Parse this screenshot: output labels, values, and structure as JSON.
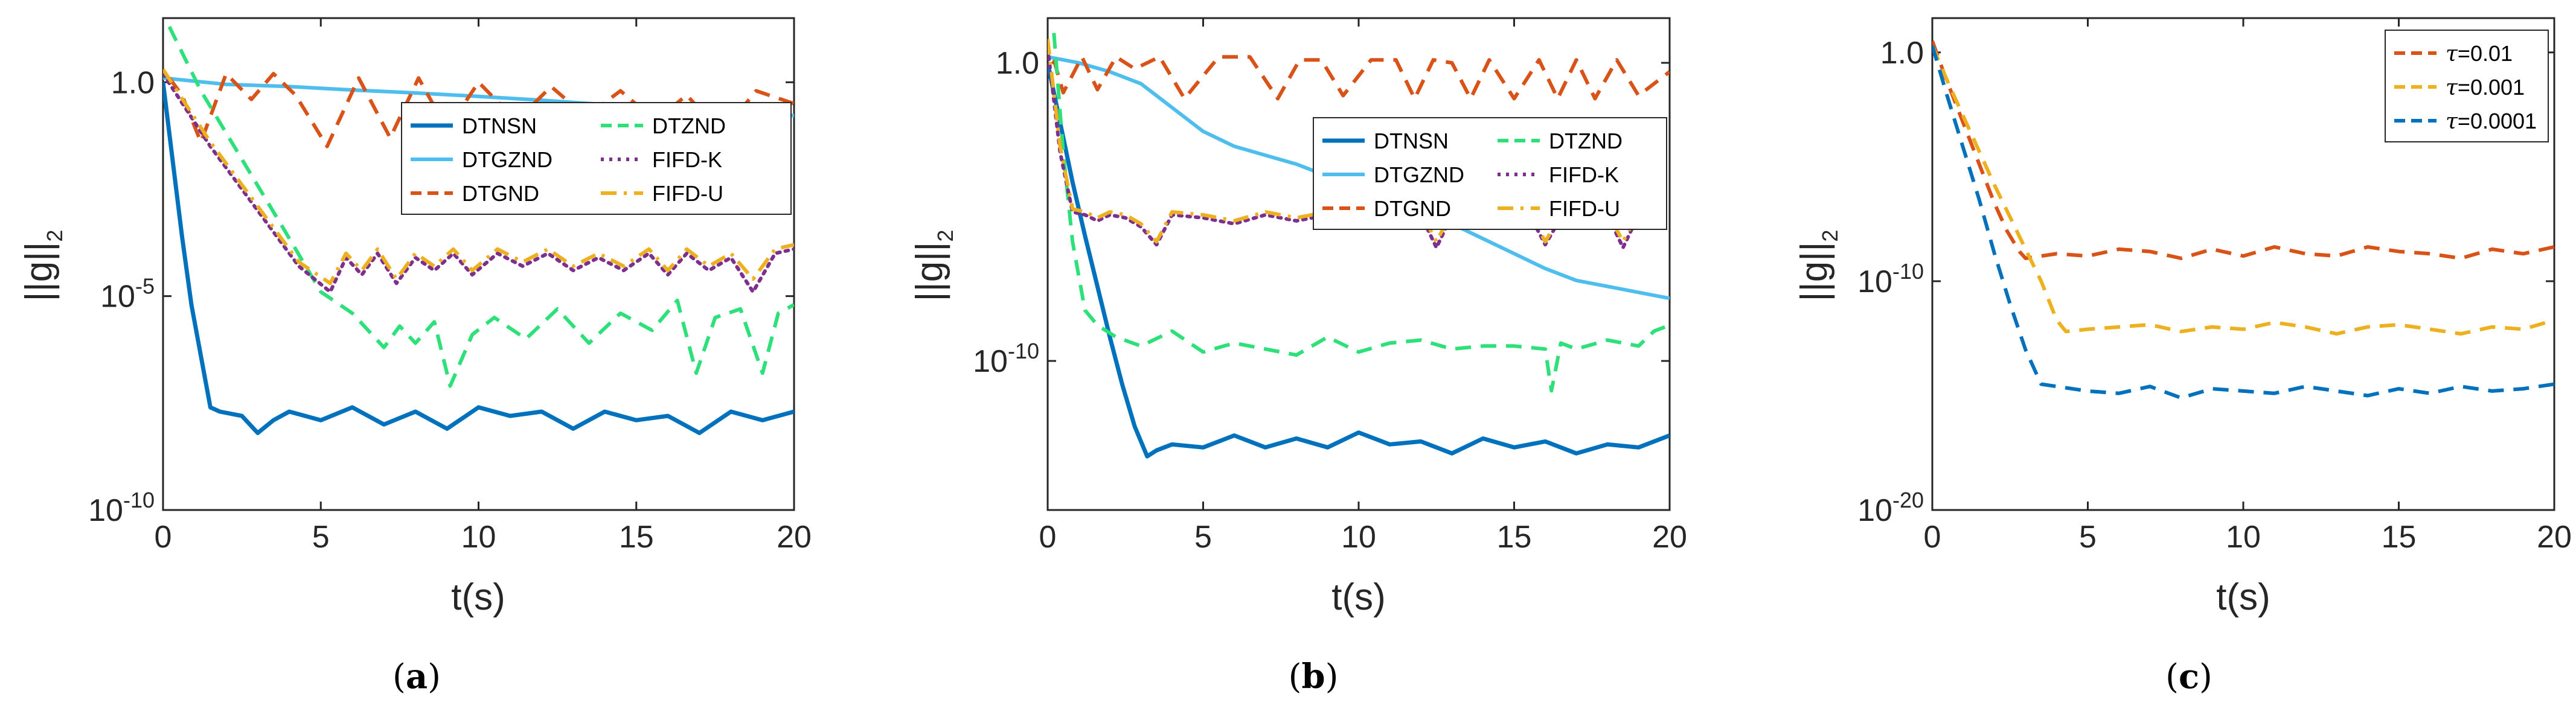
{
  "figure": {
    "captions": [
      {
        "open": "(",
        "letter": "a",
        "close": ")"
      },
      {
        "open": "(",
        "letter": "b",
        "close": ")"
      },
      {
        "open": "(",
        "letter": "c",
        "close": ")"
      }
    ]
  },
  "chart_data": [
    {
      "type": "line",
      "panel": "a",
      "title": "",
      "xlabel": "t(s)",
      "ylabel": "||g||",
      "ylabel_sub": "2",
      "yscale": "log",
      "xlim": [
        0,
        20
      ],
      "ylim_exp": [
        -10,
        1.5
      ],
      "xticks": [
        "0",
        "5",
        "10",
        "15",
        "20"
      ],
      "yticks": [
        {
          "base": "10",
          "exp": "-10",
          "e": -10
        },
        {
          "base": "10",
          "exp": "-5",
          "e": -5
        },
        {
          "base": "10",
          "exp": "0",
          "e": 0,
          "label": "1.0"
        }
      ],
      "legend_position": "top-right",
      "legend_columns": 2,
      "series": [
        {
          "name": "DTNSN",
          "color": "#0072BD",
          "style": "solid",
          "width": 7,
          "x": [
            0,
            0.3,
            0.6,
            0.9,
            1.2,
            1.5,
            1.8,
            2.5,
            3.0,
            3.5,
            4.0,
            5.0,
            6.0,
            7.0,
            8.0,
            9.0,
            10.0,
            11.0,
            12.0,
            13.0,
            14.0,
            15.0,
            16.0,
            17.0,
            18.0,
            19.0,
            20.0
          ],
          "y": [
            0,
            -1.8,
            -3.6,
            -5.2,
            -6.4,
            -7.6,
            -7.7,
            -7.8,
            -8.2,
            -7.9,
            -7.7,
            -7.9,
            -7.6,
            -8.0,
            -7.7,
            -8.1,
            -7.6,
            -7.8,
            -7.7,
            -8.1,
            -7.7,
            -7.9,
            -7.8,
            -8.2,
            -7.7,
            -7.9,
            -7.7
          ]
        },
        {
          "name": "DTGZND",
          "color": "#4DBEEE",
          "style": "solid",
          "width": 6,
          "x": [
            0,
            2,
            4,
            6,
            8,
            10,
            12,
            14,
            16,
            18,
            20
          ],
          "y": [
            0.1,
            -0.05,
            -0.1,
            -0.18,
            -0.25,
            -0.33,
            -0.42,
            -0.52,
            -0.62,
            -0.7,
            -0.78
          ]
        },
        {
          "name": "DTGND",
          "color": "#D95319",
          "style": "dashed",
          "width": 6,
          "x": [
            0.2,
            0.6,
            1.2,
            2.0,
            2.8,
            3.5,
            4.2,
            5.2,
            6.2,
            7.2,
            8.1,
            9.0,
            10.0,
            11.2,
            12.3,
            13.4,
            14.5,
            15.6,
            16.6,
            17.7,
            18.8,
            20.0
          ],
          "y": [
            0.1,
            -0.3,
            -1.4,
            0.2,
            -0.4,
            0.2,
            -0.3,
            -1.5,
            0.1,
            -1.3,
            0.1,
            -1.1,
            0.0,
            -0.9,
            -0.1,
            -0.8,
            -0.2,
            -0.9,
            -0.3,
            -1.2,
            -0.2,
            -0.5
          ]
        },
        {
          "name": "DTZND",
          "color": "#2EE07A",
          "style": "dashed",
          "width": 6,
          "x": [
            0.2,
            1.2,
            2.5,
            3.8,
            5.0,
            6.0,
            7.0,
            7.5,
            8.0,
            8.6,
            9.1,
            9.8,
            10.5,
            11.5,
            12.5,
            13.5,
            14.5,
            15.5,
            16.3,
            16.9,
            17.5,
            18.3,
            19.0,
            19.5,
            20.0
          ],
          "y": [
            1.3,
            -0.2,
            -1.8,
            -3.4,
            -4.9,
            -5.4,
            -6.2,
            -5.7,
            -6.1,
            -5.6,
            -7.1,
            -5.9,
            -5.5,
            -6.0,
            -5.3,
            -6.1,
            -5.4,
            -5.8,
            -5.1,
            -6.8,
            -5.5,
            -5.3,
            -6.8,
            -5.4,
            -5.2
          ]
        },
        {
          "name": "FIFD-K",
          "color": "#7E2F8E",
          "style": "dotted",
          "width": 6,
          "x": [
            0,
            1.5,
            3.0,
            4.3,
            5.3,
            5.8,
            6.3,
            6.8,
            7.4,
            8.0,
            8.6,
            9.2,
            9.8,
            10.6,
            11.4,
            12.2,
            13.0,
            13.8,
            14.6,
            15.4,
            16.0,
            16.6,
            17.3,
            18.0,
            18.7,
            19.4,
            20.0
          ],
          "y": [
            0.2,
            -1.5,
            -3.0,
            -4.3,
            -4.9,
            -4.1,
            -4.5,
            -4.0,
            -4.7,
            -4.1,
            -4.4,
            -4.0,
            -4.5,
            -4.0,
            -4.3,
            -4.0,
            -4.4,
            -4.1,
            -4.4,
            -4.0,
            -4.5,
            -4.0,
            -4.4,
            -4.1,
            -4.9,
            -4.0,
            -3.9
          ]
        },
        {
          "name": "FIFD-U",
          "color": "#EDB120",
          "style": "dashdot",
          "width": 6,
          "x": [
            0,
            1.5,
            3.0,
            4.3,
            5.3,
            5.8,
            6.3,
            6.8,
            7.4,
            8.0,
            8.6,
            9.2,
            9.8,
            10.6,
            11.4,
            12.2,
            13.0,
            13.8,
            14.6,
            15.4,
            16.0,
            16.6,
            17.3,
            18.0,
            18.7,
            19.4,
            20.0
          ],
          "y": [
            0.3,
            -1.4,
            -2.9,
            -4.2,
            -4.7,
            -4.0,
            -4.4,
            -3.9,
            -4.6,
            -4.0,
            -4.3,
            -3.9,
            -4.4,
            -3.9,
            -4.2,
            -3.9,
            -4.3,
            -4.0,
            -4.3,
            -3.9,
            -4.4,
            -3.9,
            -4.3,
            -4.0,
            -4.6,
            -3.9,
            -3.8
          ]
        }
      ]
    },
    {
      "type": "line",
      "panel": "b",
      "title": "",
      "xlabel": "t(s)",
      "ylabel": "||g||",
      "ylabel_sub": "2",
      "yscale": "log",
      "xlim": [
        0,
        20
      ],
      "ylim_exp": [
        -15,
        1.5
      ],
      "xticks": [
        "0",
        "5",
        "10",
        "15",
        "20"
      ],
      "yticks": [
        {
          "base": "10",
          "exp": "-10",
          "e": -10
        },
        {
          "base": "10",
          "exp": "0",
          "e": 0,
          "label": "1.0"
        }
      ],
      "legend_position": "top-right",
      "legend_columns": 2,
      "series": [
        {
          "name": "DTNSN",
          "color": "#0072BD",
          "style": "solid",
          "width": 7,
          "x": [
            0,
            0.4,
            0.8,
            1.2,
            1.6,
            2.0,
            2.4,
            2.8,
            3.2,
            3.5,
            4.0,
            5.0,
            6.0,
            7.0,
            8.0,
            9.0,
            10.0,
            11.0,
            12.0,
            13.0,
            14.0,
            15.0,
            16.0,
            17.0,
            18.0,
            19.0,
            20.0
          ],
          "y": [
            0,
            -2.0,
            -4.0,
            -5.8,
            -7.5,
            -9.2,
            -10.8,
            -12.2,
            -13.2,
            -13.0,
            -12.8,
            -12.9,
            -12.5,
            -12.9,
            -12.6,
            -12.9,
            -12.4,
            -12.8,
            -12.7,
            -13.1,
            -12.6,
            -12.9,
            -12.7,
            -13.1,
            -12.8,
            -12.9,
            -12.5
          ]
        },
        {
          "name": "DTGZND",
          "color": "#4DBEEE",
          "style": "solid",
          "width": 6,
          "x": [
            0,
            1,
            2,
            3,
            4,
            5,
            6,
            7,
            8,
            9,
            10,
            11,
            12,
            13,
            14,
            15,
            16,
            17,
            18,
            19,
            20
          ],
          "y": [
            0.2,
            0.0,
            -0.3,
            -0.7,
            -1.5,
            -2.3,
            -2.8,
            -3.1,
            -3.4,
            -3.8,
            -4.2,
            -4.6,
            -5.0,
            -5.4,
            -5.9,
            -6.4,
            -6.9,
            -7.3,
            -7.5,
            -7.7,
            -7.9
          ]
        },
        {
          "name": "DTGND",
          "color": "#D95319",
          "style": "dashed",
          "width": 6,
          "x": [
            0.2,
            0.5,
            1.1,
            1.6,
            2.2,
            2.8,
            3.6,
            4.4,
            5.5,
            6.5,
            7.4,
            8.1,
            8.8,
            9.5,
            10.4,
            11.2,
            11.8,
            12.4,
            13.0,
            13.6,
            14.2,
            15.0,
            15.8,
            16.4,
            17.0,
            17.6,
            18.3,
            19.0,
            20.0
          ],
          "y": [
            0.1,
            -1.0,
            0.2,
            -0.9,
            0.2,
            -0.2,
            0.2,
            -1.2,
            0.2,
            0.2,
            -1.2,
            0.1,
            0.1,
            -1.1,
            0.1,
            0.1,
            -1.2,
            0.1,
            0.0,
            -1.2,
            0.1,
            -1.2,
            0.1,
            -1.2,
            0.1,
            -1.2,
            0.1,
            -1.1,
            -0.3
          ]
        },
        {
          "name": "DTZND",
          "color": "#2EE07A",
          "style": "dashed",
          "width": 6,
          "x": [
            0.2,
            0.5,
            0.8,
            1.2,
            1.6,
            2.2,
            3.0,
            4.0,
            5.0,
            6.0,
            7.0,
            8.0,
            9.0,
            10.0,
            11.0,
            12.0,
            13.0,
            14.0,
            15.0,
            16.0,
            16.2,
            16.5,
            17.0,
            18.0,
            19.0,
            19.5,
            20.0
          ],
          "y": [
            1.0,
            -3.0,
            -6.0,
            -8.3,
            -8.8,
            -9.2,
            -9.5,
            -9.0,
            -9.7,
            -9.4,
            -9.6,
            -9.8,
            -9.2,
            -9.7,
            -9.4,
            -9.3,
            -9.6,
            -9.5,
            -9.5,
            -9.6,
            -11.0,
            -9.4,
            -9.6,
            -9.3,
            -9.5,
            -9.0,
            -8.8
          ]
        },
        {
          "name": "FIFD-K",
          "color": "#7E2F8E",
          "style": "dotted",
          "width": 6,
          "x": [
            0,
            0.4,
            0.8,
            1.2,
            1.6,
            2.0,
            2.5,
            3.0,
            3.5,
            4.0,
            5.0,
            6.0,
            7.0,
            8.0,
            9.0,
            10.0,
            11.0,
            12.0,
            12.5,
            13.0,
            14.0,
            15.0,
            15.5,
            16.0,
            16.5,
            17.0,
            17.5,
            18.0,
            18.5,
            19.0,
            20.0
          ],
          "y": [
            0.5,
            -3.0,
            -5.0,
            -5.1,
            -5.3,
            -5.1,
            -5.2,
            -5.5,
            -6.1,
            -5.1,
            -5.2,
            -5.4,
            -5.1,
            -5.3,
            -5.1,
            -5.2,
            -5.4,
            -5.1,
            -6.2,
            -5.1,
            -5.2,
            -5.3,
            -5.1,
            -6.1,
            -5.2,
            -5.1,
            -5.3,
            -5.1,
            -6.2,
            -5.1,
            -5.3
          ]
        },
        {
          "name": "FIFD-U",
          "color": "#EDB120",
          "style": "dashdot",
          "width": 6,
          "x": [
            0,
            0.4,
            0.8,
            1.2,
            1.6,
            2.0,
            2.5,
            3.0,
            3.5,
            4.0,
            5.0,
            6.0,
            7.0,
            8.0,
            9.0,
            10.0,
            11.0,
            12.0,
            12.5,
            13.0,
            14.0,
            15.0,
            15.5,
            16.0,
            16.5,
            17.0,
            17.5,
            18.0,
            18.5,
            19.0,
            20.0
          ],
          "y": [
            0.8,
            -2.8,
            -4.9,
            -5.0,
            -5.2,
            -5.0,
            -5.1,
            -5.4,
            -6.0,
            -5.0,
            -5.1,
            -5.3,
            -5.0,
            -5.2,
            -5.0,
            -5.1,
            -5.3,
            -5.0,
            -6.0,
            -5.0,
            -5.1,
            -5.2,
            -5.0,
            -6.0,
            -5.1,
            -5.0,
            -5.2,
            -5.0,
            -6.0,
            -5.0,
            -5.2
          ]
        }
      ]
    },
    {
      "type": "line",
      "panel": "c",
      "title": "",
      "xlabel": "t(s)",
      "ylabel": "||g||",
      "ylabel_sub": "2",
      "yscale": "log",
      "xlim": [
        0,
        20
      ],
      "ylim_exp": [
        -20,
        1.5
      ],
      "xticks": [
        "0",
        "5",
        "10",
        "15",
        "20"
      ],
      "yticks": [
        {
          "base": "10",
          "exp": "-20",
          "e": -20
        },
        {
          "base": "10",
          "exp": "-10",
          "e": -10
        },
        {
          "base": "10",
          "exp": "0",
          "e": 0,
          "label": "1.0"
        }
      ],
      "legend_position": "top-right",
      "legend_columns": 1,
      "series": [
        {
          "name": "τ=0.01",
          "label_prefix": "τ",
          "label_value": "=0.01",
          "color": "#D95319",
          "style": "dashed",
          "width": 6,
          "x": [
            0,
            0.4,
            0.8,
            1.2,
            1.6,
            2.0,
            2.4,
            2.8,
            3.0,
            4.0,
            5.0,
            6.0,
            7.0,
            8.0,
            9.0,
            10.0,
            11.0,
            12.0,
            13.0,
            14.0,
            15.0,
            16.0,
            17.0,
            18.0,
            19.0,
            20.0
          ],
          "y": [
            0.5,
            -1.0,
            -2.4,
            -3.8,
            -5.2,
            -6.6,
            -7.8,
            -8.7,
            -9.0,
            -8.8,
            -8.9,
            -8.6,
            -8.7,
            -9.0,
            -8.6,
            -8.9,
            -8.5,
            -8.8,
            -8.9,
            -8.5,
            -8.7,
            -8.8,
            -9.0,
            -8.6,
            -8.8,
            -8.5
          ]
        },
        {
          "name": "τ=0.001",
          "label_prefix": "τ",
          "label_value": "=0.001",
          "color": "#EDB120",
          "style": "dashed",
          "width": 6,
          "x": [
            0,
            0.5,
            1.0,
            1.5,
            2.0,
            2.5,
            3.0,
            3.5,
            4.0,
            4.3,
            5.0,
            6.0,
            7.0,
            8.0,
            9.0,
            10.0,
            11.0,
            12.0,
            13.0,
            14.0,
            15.0,
            16.0,
            17.0,
            18.0,
            19.0,
            20.0
          ],
          "y": [
            0.3,
            -1.3,
            -2.8,
            -4.3,
            -5.8,
            -7.2,
            -8.6,
            -10.0,
            -11.7,
            -12.2,
            -12.1,
            -12.0,
            -11.9,
            -12.2,
            -12.0,
            -12.1,
            -11.8,
            -12.0,
            -12.3,
            -12.0,
            -11.9,
            -12.1,
            -12.3,
            -12.0,
            -12.1,
            -11.7
          ]
        },
        {
          "name": "τ=0.0001",
          "label_prefix": "τ",
          "label_value": "=0.0001",
          "color": "#0072BD",
          "style": "dashed",
          "width": 6,
          "x": [
            0,
            0.5,
            1.0,
            1.5,
            2.0,
            2.5,
            3.0,
            3.5,
            4.0,
            5.0,
            6.0,
            7.0,
            8.0,
            9.0,
            10.0,
            11.0,
            12.0,
            13.0,
            14.0,
            15.0,
            16.0,
            17.0,
            18.0,
            19.0,
            20.0
          ],
          "y": [
            0.3,
            -2.0,
            -4.2,
            -6.4,
            -8.8,
            -11.0,
            -13.0,
            -14.5,
            -14.6,
            -14.8,
            -14.9,
            -14.6,
            -15.1,
            -14.7,
            -14.8,
            -14.9,
            -14.6,
            -14.8,
            -15.0,
            -14.7,
            -14.9,
            -14.6,
            -14.8,
            -14.7,
            -14.5
          ]
        }
      ]
    }
  ]
}
